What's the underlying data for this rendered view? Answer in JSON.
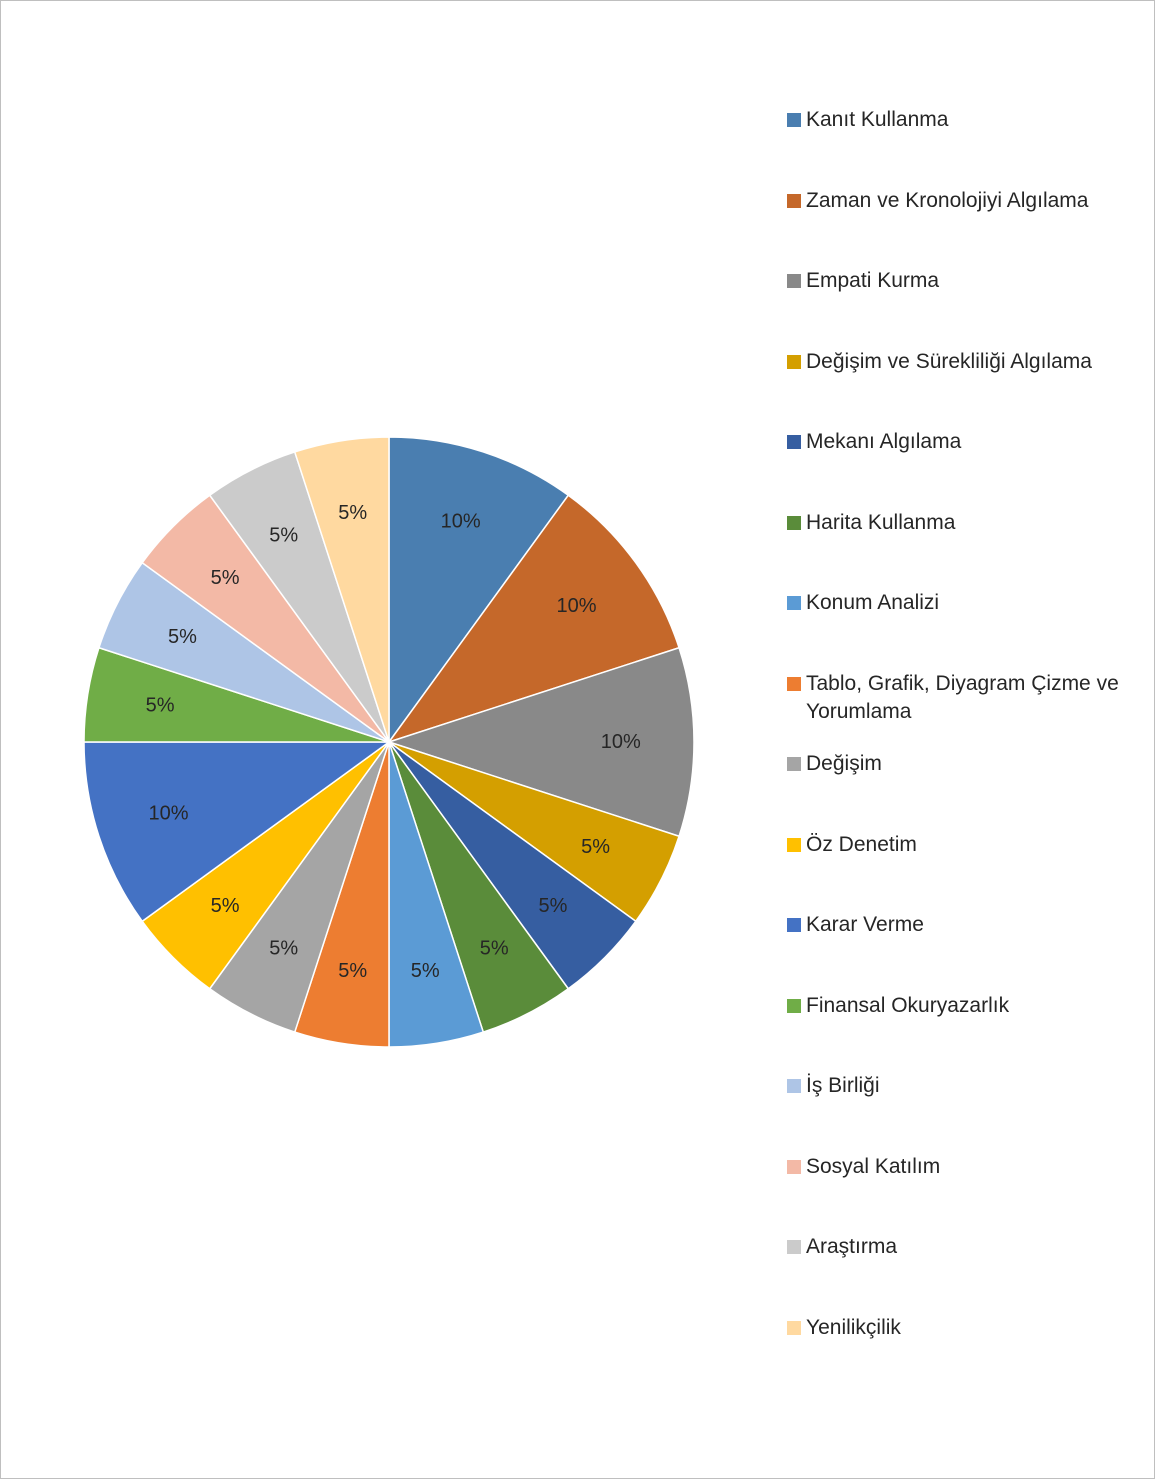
{
  "chart_data": {
    "type": "pie",
    "start_angle": 0,
    "direction": "clockwise",
    "legend_position": "right",
    "categories": [
      "Kanıt Kullanma",
      "Zaman ve Kronolojiyi Algılama",
      "Empati Kurma",
      "Değişim ve Sürekliliği Algılama",
      "Mekanı Algılama",
      "Harita Kullanma",
      "Konum Analizi",
      "Tablo, Grafik, Diyagram Çizme ve Yorumlama",
      "Değişim",
      "Öz Denetim",
      "Karar Verme",
      "Finansal Okuryazarlık",
      "İş Birliği",
      "Sosyal Katılım",
      "Araştırma",
      "Yenilikçilik"
    ],
    "values": [
      10,
      10,
      10,
      5,
      5,
      5,
      5,
      5,
      5,
      5,
      10,
      5,
      5,
      5,
      5,
      5
    ],
    "data_labels": [
      "10%",
      "10%",
      "10%",
      "5%",
      "5%",
      "5%",
      "5%",
      "5%",
      "5%",
      "5%",
      "10%",
      "5%",
      "5%",
      "5%",
      "5%",
      "5%"
    ],
    "colors": [
      "#4a7eb0",
      "#c5682a",
      "#898989",
      "#d49f00",
      "#365ea1",
      "#5a8c3a",
      "#5b9bd5",
      "#ed7d31",
      "#a5a5a5",
      "#ffc000",
      "#4472c4",
      "#70ad47",
      "#aec5e6",
      "#f3b9a6",
      "#cbcbcb",
      "#ffd9a0"
    ]
  }
}
